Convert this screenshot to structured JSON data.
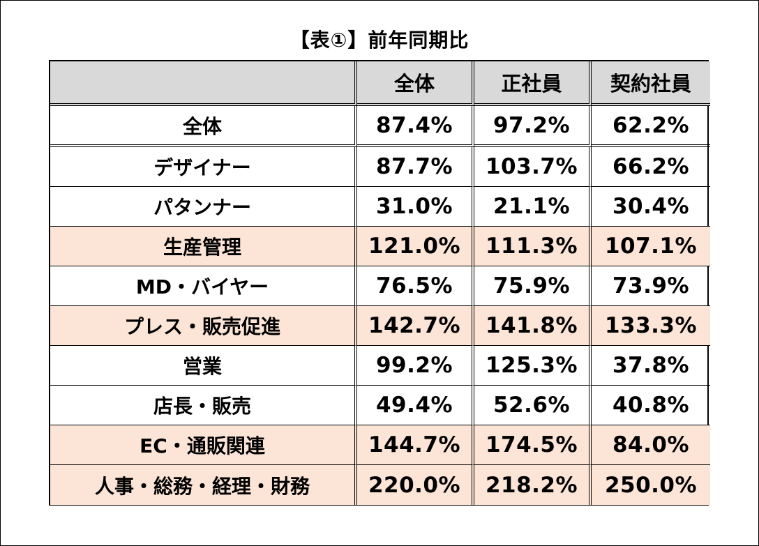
{
  "title": "【表①】前年同期比",
  "chart_data": {
    "type": "table",
    "title": "【表①】前年同期比",
    "columns": [
      "",
      "全体",
      "正社員",
      "契約社員"
    ],
    "rows": [
      {
        "label": "全体",
        "values": [
          "87.4%",
          "97.2%",
          "62.2%"
        ],
        "highlight": false
      },
      {
        "label": "デザイナー",
        "values": [
          "87.7%",
          "103.7%",
          "66.2%"
        ],
        "highlight": false
      },
      {
        "label": "パタンナー",
        "values": [
          "31.0%",
          "21.1%",
          "30.4%"
        ],
        "highlight": false
      },
      {
        "label": "生産管理",
        "values": [
          "121.0%",
          "111.3%",
          "107.1%"
        ],
        "highlight": true
      },
      {
        "label": "MD・バイヤー",
        "values": [
          "76.5%",
          "75.9%",
          "73.9%"
        ],
        "highlight": false
      },
      {
        "label": "プレス・販売促進",
        "values": [
          "142.7%",
          "141.8%",
          "133.3%"
        ],
        "highlight": true
      },
      {
        "label": "営業",
        "values": [
          "99.2%",
          "125.3%",
          "37.8%"
        ],
        "highlight": false
      },
      {
        "label": "店長・販売",
        "values": [
          "49.4%",
          "52.6%",
          "40.8%"
        ],
        "highlight": false
      },
      {
        "label": "EC・通販関連",
        "values": [
          "144.7%",
          "174.5%",
          "84.0%"
        ],
        "highlight": true
      },
      {
        "label": "人事・総務・経理・財務",
        "values": [
          "220.0%",
          "218.2%",
          "250.0%"
        ],
        "highlight": true
      }
    ]
  },
  "colors": {
    "header_bg": "#d9d9d9",
    "highlight_bg": "#fce4d6",
    "border": "#000000",
    "text": "#000000"
  }
}
